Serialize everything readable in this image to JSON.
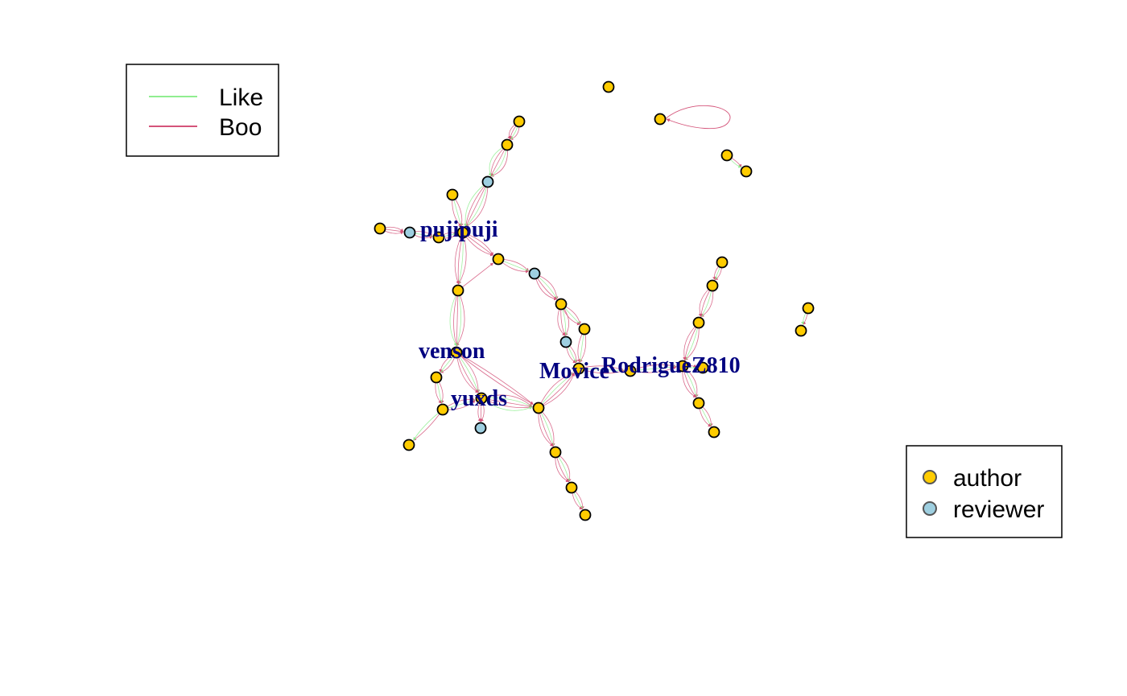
{
  "colors": {
    "like": "#90EE90",
    "boo": "#D4547A",
    "author": "#FFCC00",
    "reviewer": "#9ECFE0",
    "label": "#000080"
  },
  "legend_edges": [
    {
      "key": "like",
      "label": "Like"
    },
    {
      "key": "boo",
      "label": "Boo"
    }
  ],
  "legend_nodes": [
    {
      "key": "author",
      "label": "author"
    },
    {
      "key": "reviewer",
      "label": "reviewer"
    }
  ],
  "labels": [
    {
      "id": "pujipuji",
      "text": "pujipuji"
    },
    {
      "id": "venson",
      "text": "venson"
    },
    {
      "id": "yuxds",
      "text": "yuxds"
    },
    {
      "id": "movice",
      "text": "Movice"
    },
    {
      "id": "rodriguez",
      "text": "RodrigueZ810"
    }
  ]
}
